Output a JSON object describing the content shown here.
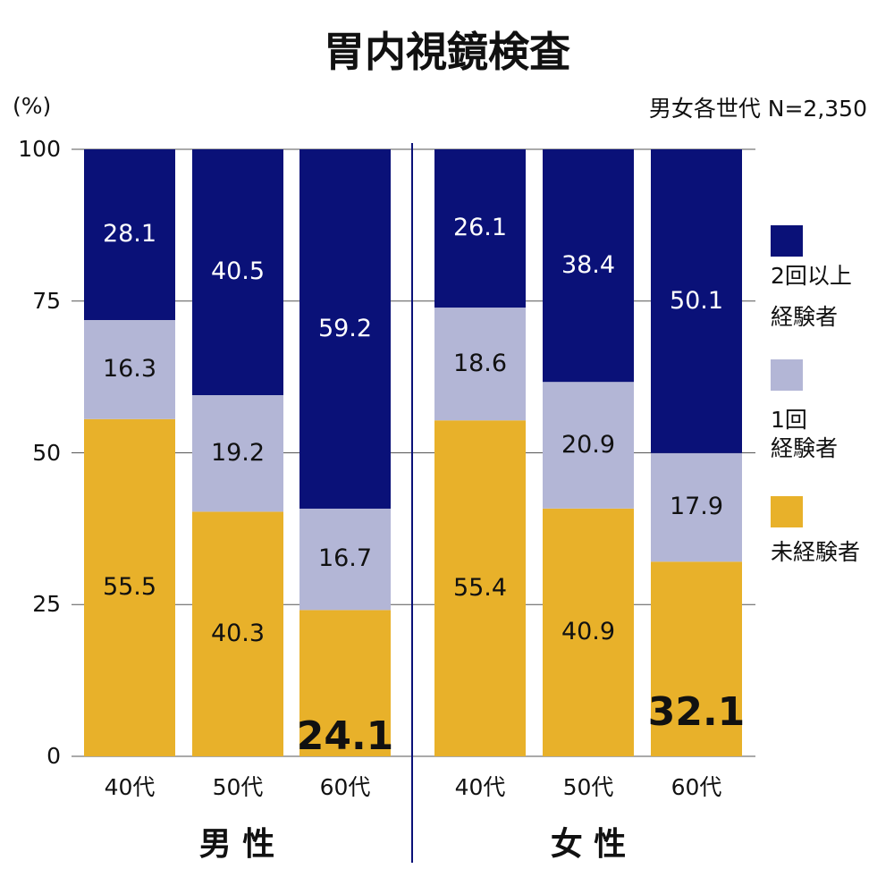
{
  "chart_data": {
    "type": "bar",
    "stacked": true,
    "title": "胃内視鏡検査",
    "ylabel": "(%)",
    "note": "男女各世代 N=2,350",
    "ylim": [
      0,
      100
    ],
    "yticks": [
      "0",
      "25",
      "50",
      "75",
      "100"
    ],
    "grid": true,
    "legend_position": "right",
    "groups": [
      {
        "label": "男 性",
        "categories": [
          "40代",
          "50代",
          "60代"
        ]
      },
      {
        "label": "女 性",
        "categories": [
          "40代",
          "50代",
          "60代"
        ]
      }
    ],
    "series": [
      {
        "name": "未経験者",
        "color": "#e8b12a",
        "values": [
          [
            55.5,
            40.3,
            24.1
          ],
          [
            55.4,
            40.9,
            32.1
          ]
        ],
        "labels": [
          [
            "55.5",
            "40.3",
            "24.1"
          ],
          [
            "55.4",
            "40.9",
            "32.1"
          ]
        ]
      },
      {
        "name": "1回経験者",
        "legend_lines": [
          "1回",
          "経験者"
        ],
        "color": "#b3b6d6",
        "values": [
          [
            16.3,
            19.2,
            16.7
          ],
          [
            18.6,
            20.9,
            17.9
          ]
        ],
        "labels": [
          [
            "16.3",
            "19.2",
            "16.7"
          ],
          [
            "18.6",
            "20.9",
            "17.9"
          ]
        ]
      },
      {
        "name": "2回以上経験者",
        "legend_lines": [
          "2回以上",
          "経験者"
        ],
        "color": "#0a1178",
        "values": [
          [
            28.1,
            40.5,
            59.2
          ],
          [
            26.1,
            38.4,
            50.1
          ]
        ],
        "labels": [
          [
            "28.1",
            "40.5",
            "59.2"
          ],
          [
            "26.1",
            "38.4",
            "50.1"
          ]
        ]
      }
    ],
    "legend_lines_0": [
      "未経験者"
    ],
    "emphasized": [
      [
        0,
        2
      ],
      [
        1,
        2
      ]
    ]
  }
}
